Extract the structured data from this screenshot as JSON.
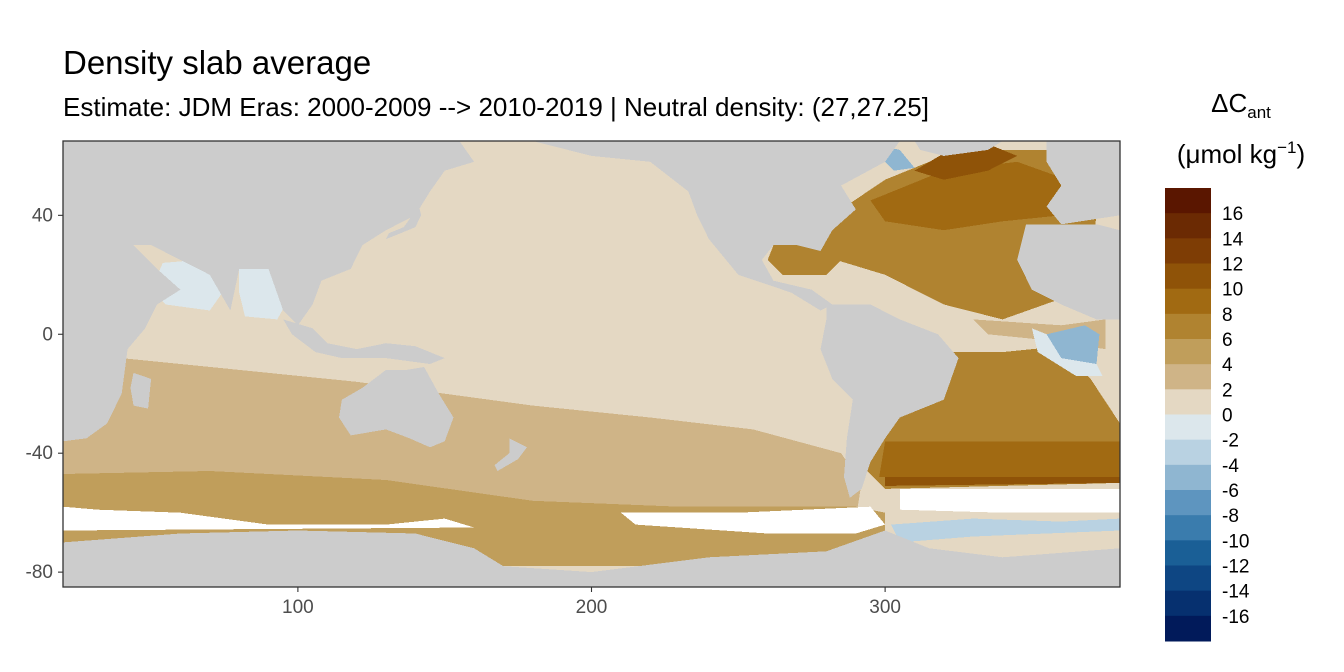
{
  "header": {
    "title": "Density slab average",
    "subtitle": "Estimate: JDM Eras: 2000-2009 --> 2010-2019 | Neutral density: (27,27.25]"
  },
  "legend": {
    "title_symbol": "ΔC",
    "title_subscript": "ant",
    "unit_prefix": "(μmol kg",
    "unit_superscript": "−1",
    "unit_suffix": ")",
    "labels": [
      "16",
      "14",
      "12",
      "10",
      "8",
      "6",
      "4",
      "2",
      "0",
      "-2",
      "-4",
      "-6",
      "-8",
      "-10",
      "-12",
      "-14",
      "-16"
    ],
    "colors": [
      "#5a1600",
      "#6b2a03",
      "#7e3d05",
      "#8f5308",
      "#a16a12",
      "#b08330",
      "#c09e5b",
      "#cfb487",
      "#e4d8c3",
      "#dce7ec",
      "#b9d2e2",
      "#8fb6d1",
      "#5e95bf",
      "#3a7cad",
      "#1a5f96",
      "#0e4683",
      "#06306f",
      "#011a5a"
    ]
  },
  "chart_data": {
    "type": "heatmap",
    "title": "Density slab average",
    "subtitle": "Estimate: JDM Eras: 2000-2009 --> 2010-2019 | Neutral density: (27,27.25]",
    "xlabel": "",
    "ylabel": "",
    "xlim": [
      20,
      380
    ],
    "ylim": [
      -85,
      65
    ],
    "x_ticks": [
      100,
      200,
      300
    ],
    "y_ticks": [
      40,
      0,
      -40,
      -80
    ],
    "grid": true,
    "legend_position": "right",
    "land_color": "#cccccc",
    "no_data_color": "#ffffff",
    "regions": [
      {
        "name": "North Pacific",
        "value_approx": 1.0
      },
      {
        "name": "Southern Pacific band",
        "value_approx": 2.5
      },
      {
        "name": "Southern Ocean band",
        "value_approx": 4.5
      },
      {
        "name": "North Atlantic",
        "value_approx": 8.0
      },
      {
        "name": "Labrador Sea",
        "value_approx": 10.0
      },
      {
        "name": "South Atlantic midlatitude",
        "value_approx": 7.0
      },
      {
        "name": "Tropical East Atlantic",
        "value_approx": -6.0
      },
      {
        "name": "Arabian Sea / Bay of Bengal",
        "value_approx": -1.0
      },
      {
        "name": "Weddell Sea edge",
        "value_approx": -2.0
      }
    ]
  }
}
